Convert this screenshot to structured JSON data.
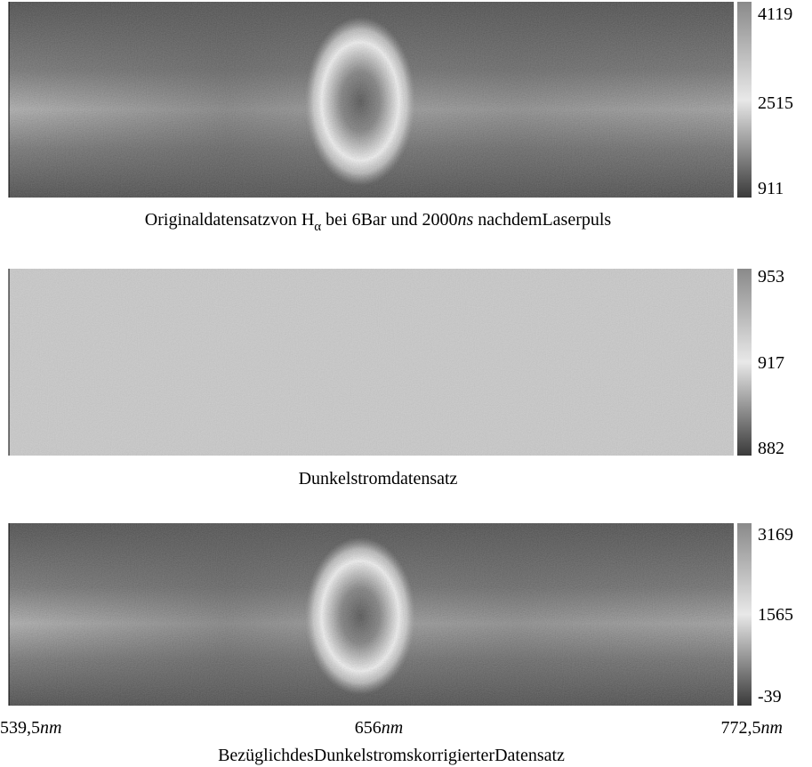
{
  "panels": [
    {
      "colorbar_ticks": [
        4119,
        2515,
        911
      ],
      "caption": [
        "Originaldatensatzvon ",
        "H",
        "α",
        " bei 6Bar  und 2000",
        "ns",
        " nachdemLaserpuls"
      ]
    },
    {
      "colorbar_ticks": [
        953,
        917,
        882
      ],
      "caption": [
        "Dunkelstromdatensatz"
      ]
    },
    {
      "colorbar_ticks": [
        3169,
        1565,
        -39
      ],
      "caption": [
        "BezüglichdesDunkelstromskorrigierterDatensatz"
      ]
    }
  ],
  "x_labels": [
    [
      "539,5",
      "nm"
    ],
    [
      "656",
      "nm"
    ],
    [
      "772,5",
      "nm"
    ]
  ]
}
